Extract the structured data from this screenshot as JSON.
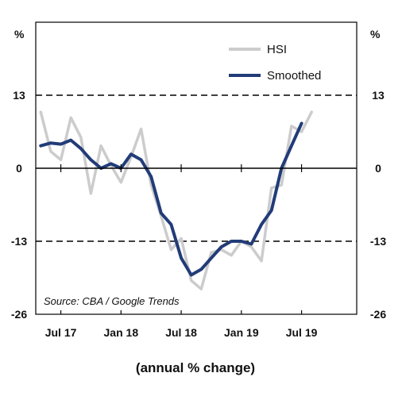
{
  "chart_data": {
    "type": "line",
    "unit_left": "%",
    "unit_right": "%",
    "subtitle": "(annual % change)",
    "source": "Source: CBA / Google Trends",
    "ylim": [
      -26,
      26
    ],
    "yticks": [
      13,
      0,
      -13,
      -26
    ],
    "ytick_labels": [
      "13",
      "0",
      "-13",
      "-26"
    ],
    "dashed_reference_lines": [
      13,
      -13
    ],
    "xlim": [
      "2017-05",
      "2019-12"
    ],
    "xticks": [
      "2017-07",
      "2018-01",
      "2018-07",
      "2019-01",
      "2019-07"
    ],
    "xtick_labels": [
      "Jul 17",
      "Jan 18",
      "Jul 18",
      "Jan 19",
      "Jul 19"
    ],
    "legend_position": "top-right",
    "colors": {
      "HSI": "#cccccc",
      "Smoothed": "#223c78",
      "axis": "#000000"
    },
    "series": [
      {
        "name": "HSI",
        "x": [
          "2017-05",
          "2017-06",
          "2017-07",
          "2017-08",
          "2017-09",
          "2017-10",
          "2017-11",
          "2017-12",
          "2018-01",
          "2018-02",
          "2018-03",
          "2018-04",
          "2018-05",
          "2018-06",
          "2018-07",
          "2018-08",
          "2018-09",
          "2018-10",
          "2018-11",
          "2018-12",
          "2019-01",
          "2019-02",
          "2019-03",
          "2019-04",
          "2019-05",
          "2019-06",
          "2019-07",
          "2019-08",
          "2019-09",
          "2019-10",
          "2019-11"
        ],
        "values": [
          10,
          3,
          1.5,
          9,
          5.5,
          -4.5,
          4,
          0.5,
          -2.5,
          2,
          7,
          -3,
          -8.5,
          -14.5,
          -12.5,
          -20,
          -21.5,
          -15,
          -14.5,
          -15.5,
          -13,
          -14,
          -16.5,
          -3.5,
          -3,
          7.5,
          6.5,
          10,
          null,
          null,
          null
        ],
        "x_note": ""
      },
      {
        "name": "Smoothed",
        "x": [
          "2017-05",
          "2017-06",
          "2017-07",
          "2017-08",
          "2017-09",
          "2017-10",
          "2017-11",
          "2017-12",
          "2018-01",
          "2018-02",
          "2018-03",
          "2018-04",
          "2018-05",
          "2018-06",
          "2018-07",
          "2018-08",
          "2018-09",
          "2018-10",
          "2018-11",
          "2018-12",
          "2019-01",
          "2019-02",
          "2019-03",
          "2019-04",
          "2019-05",
          "2019-06",
          "2019-07",
          "2019-08",
          "2019-09"
        ],
        "values": [
          4,
          4.5,
          4.3,
          5,
          3.5,
          1.5,
          0,
          0.8,
          0,
          2.5,
          1.5,
          -1.5,
          -8,
          -10,
          -16,
          -19,
          -18,
          -16,
          -14,
          -13,
          -13,
          -13.5,
          -10,
          -7.5,
          0,
          4,
          8,
          null,
          null
        ]
      }
    ]
  }
}
